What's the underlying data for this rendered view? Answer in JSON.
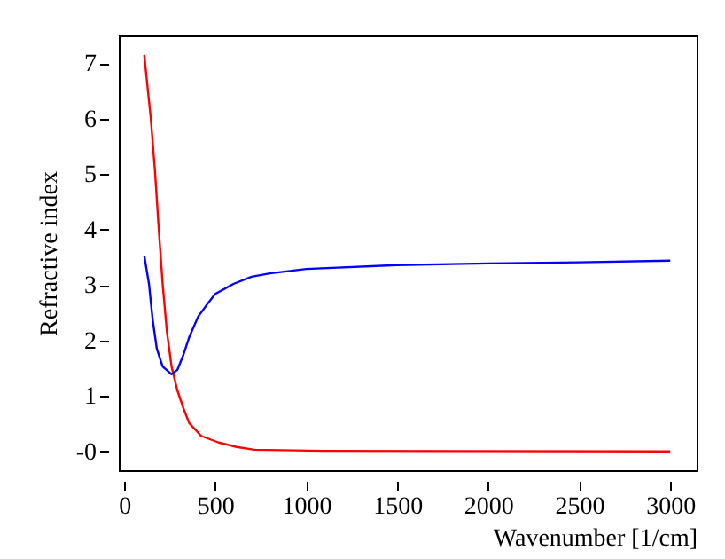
{
  "chart_data": {
    "type": "line",
    "xlabel": "Wavenumber [1/cm]",
    "ylabel": "Refractive index",
    "xlim": [
      -30,
      3145
    ],
    "ylim": [
      -0.34,
      7.5
    ],
    "xticks": [
      0,
      500,
      1000,
      1500,
      2000,
      2500,
      3000
    ],
    "yticks": [
      {
        "value": 0,
        "label": "-0"
      },
      1,
      2,
      3,
      4,
      5,
      6,
      7
    ],
    "grid": false,
    "marker": "none",
    "line_style": "solid",
    "series": [
      {
        "color": "#ff0000",
        "x": [
          110,
          146,
          169,
          188,
          211,
          234,
          260,
          292,
          325,
          357,
          422,
          519,
          617,
          714,
          1088,
          3000
        ],
        "values": [
          7.15,
          6.0,
          5.05,
          4.09,
          3.02,
          2.17,
          1.53,
          1.1,
          0.78,
          0.51,
          0.28,
          0.16,
          0.08,
          0.03,
          0.01,
          0.0
        ]
      },
      {
        "color": "#0000ff",
        "x": [
          110,
          136,
          156,
          179,
          211,
          260,
          292,
          325,
          357,
          406,
          455,
          500,
          600,
          700,
          800,
          1000,
          1500,
          2000,
          2500,
          3000
        ],
        "values": [
          3.53,
          3.02,
          2.38,
          1.85,
          1.53,
          1.39,
          1.47,
          1.74,
          2.06,
          2.43,
          2.65,
          2.84,
          3.02,
          3.15,
          3.21,
          3.29,
          3.36,
          3.39,
          3.41,
          3.44
        ]
      }
    ]
  }
}
